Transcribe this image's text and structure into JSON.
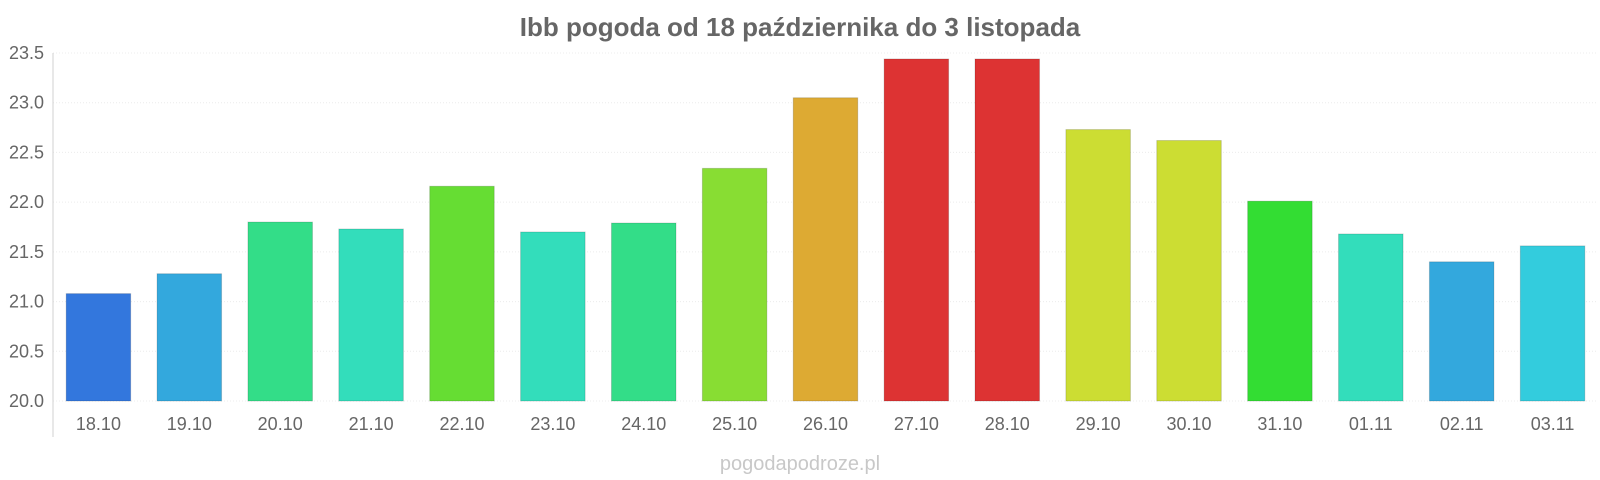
{
  "chart_data": {
    "type": "bar",
    "title": "Ibb pogoda od 18 października do 3 listopada",
    "xlabel": "",
    "ylabel": "",
    "ylim": [
      20.0,
      23.5
    ],
    "yticks": [
      "20.0",
      "20.5",
      "21.0",
      "21.5",
      "22.0",
      "22.5",
      "23.0",
      "23.5"
    ],
    "categories": [
      "18.10",
      "19.10",
      "20.10",
      "21.10",
      "22.10",
      "23.10",
      "24.10",
      "25.10",
      "26.10",
      "27.10",
      "28.10",
      "29.10",
      "30.10",
      "31.10",
      "01.11",
      "02.11",
      "03.11"
    ],
    "values": [
      21.08,
      21.28,
      21.8,
      21.73,
      22.16,
      21.7,
      21.79,
      22.34,
      23.05,
      23.44,
      23.44,
      22.73,
      22.62,
      22.01,
      21.68,
      21.4,
      21.56
    ],
    "colors": [
      "#3377dd",
      "#33a8dd",
      "#33dd88",
      "#33ddbb",
      "#66dd33",
      "#33ddbb",
      "#33dd88",
      "#88dd33",
      "#ddaa33",
      "#dd3333",
      "#dd3333",
      "#ccdd33",
      "#ccdd33",
      "#33dd33",
      "#33ddbb",
      "#33a8dd",
      "#33ccdd"
    ],
    "grid": true,
    "legend": "none"
  },
  "footer": "pogodapodroze.pl"
}
